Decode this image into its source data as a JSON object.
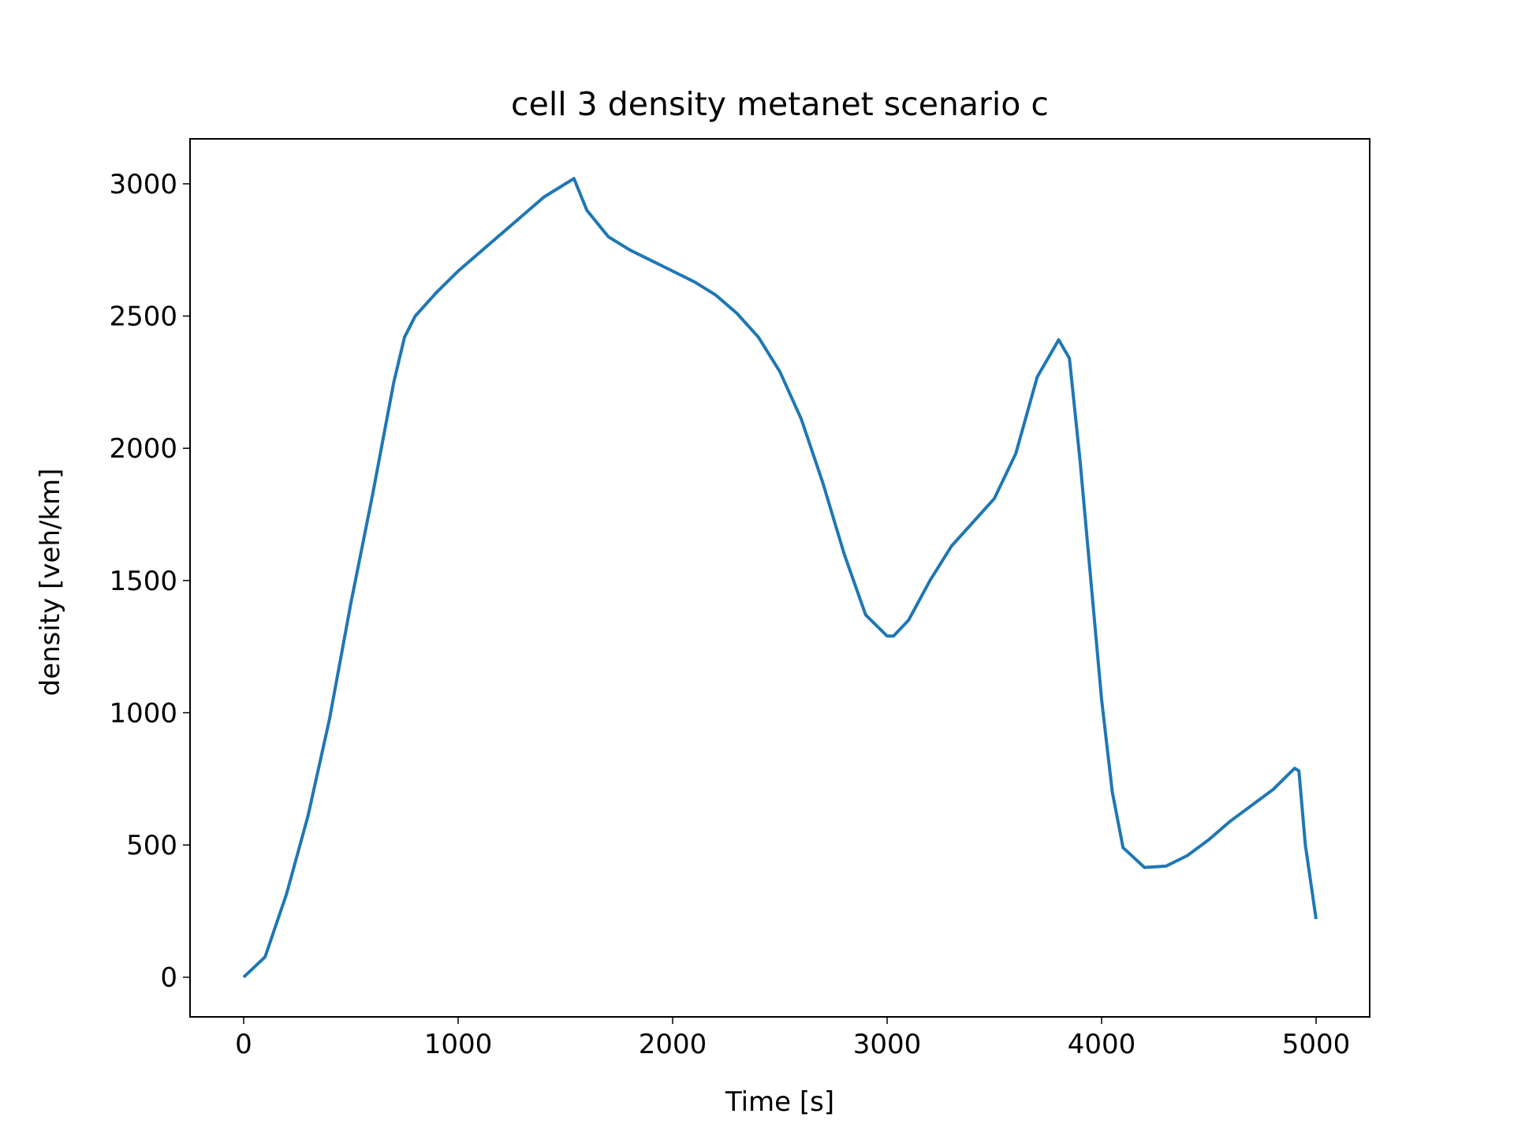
{
  "chart_data": {
    "type": "line",
    "title": "cell 3 density metanet scenario c",
    "x_label": "Time [s]",
    "y_label": "density [veh/km]",
    "x": [
      0,
      100,
      200,
      300,
      400,
      500,
      600,
      700,
      750,
      800,
      900,
      1000,
      1100,
      1200,
      1300,
      1400,
      1500,
      1540,
      1600,
      1700,
      1800,
      1900,
      2000,
      2100,
      2200,
      2300,
      2400,
      2500,
      2600,
      2700,
      2800,
      2900,
      3000,
      3030,
      3100,
      3200,
      3300,
      3400,
      3500,
      3600,
      3700,
      3800,
      3850,
      3900,
      4000,
      4050,
      4100,
      4200,
      4300,
      4400,
      4500,
      4600,
      4700,
      4800,
      4900,
      4920,
      4950,
      5000
    ],
    "series": [
      {
        "name": "density",
        "color": "#1f77b4",
        "values": [
          0,
          77,
          315,
          610,
          975,
          1415,
          1820,
          2250,
          2420,
          2500,
          2590,
          2670,
          2740,
          2810,
          2880,
          2950,
          3000,
          3020,
          2900,
          2800,
          2750,
          2710,
          2670,
          2630,
          2580,
          2510,
          2420,
          2290,
          2110,
          1870,
          1600,
          1370,
          1290,
          1290,
          1350,
          1500,
          1630,
          1720,
          1810,
          1980,
          2270,
          2410,
          2340,
          1950,
          1050,
          700,
          490,
          415,
          420,
          460,
          520,
          590,
          650,
          710,
          790,
          780,
          500,
          220
        ]
      }
    ],
    "xlim": [
      -250,
      5250
    ],
    "ylim": [
      -150,
      3170
    ],
    "xticks": [
      0,
      1000,
      2000,
      3000,
      4000,
      5000
    ],
    "yticks": [
      0,
      500,
      1000,
      1500,
      2000,
      2500,
      3000
    ]
  }
}
